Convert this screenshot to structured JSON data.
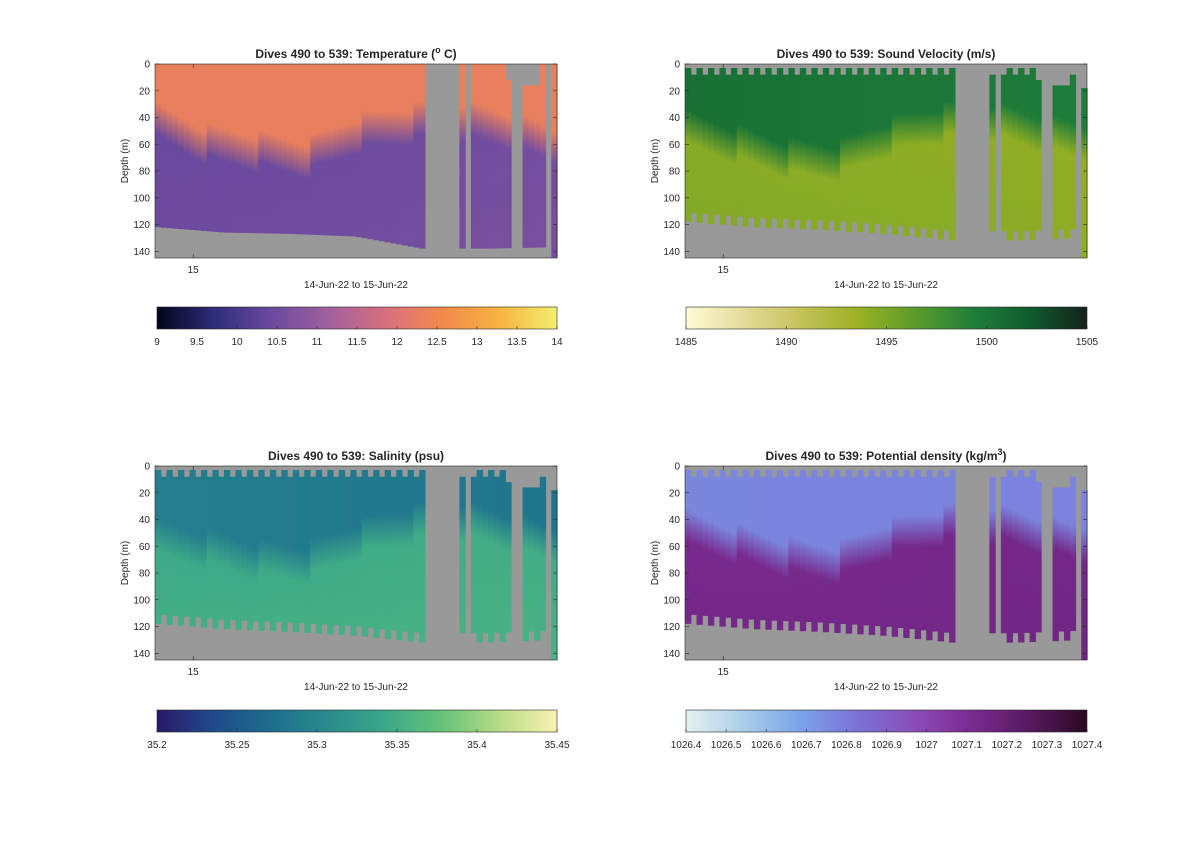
{
  "chart_data": [
    {
      "type": "heatmap",
      "title_text": "Dives 490 to 539: Temperature (",
      "title_sup": "o",
      "title_end": " C)",
      "ylabel": "Depth (m)",
      "xlabel": "14-Jun-22 to 15-Jun-22",
      "x_tick_labels": [
        "15"
      ],
      "y_tick_labels": [
        "0",
        "20",
        "40",
        "60",
        "80",
        "100",
        "120",
        "140"
      ],
      "ylim": [
        0,
        145
      ],
      "colormap": [
        "#03051a",
        "#2e2d7a",
        "#6b4a9f",
        "#a0609c",
        "#d7707e",
        "#f38a4a",
        "#f7b440",
        "#f2ef6e"
      ],
      "colorbar_ticks": [
        "9",
        "9.5",
        "10",
        "10.5",
        "11",
        "11.5",
        "12",
        "12.5",
        "13",
        "13.5",
        "14"
      ],
      "colorbar_range": [
        9,
        14
      ],
      "surface_value": 12.3,
      "deep_value": 10.45,
      "surface_values": [
        12.3,
        12.3
      ],
      "deep_values": [
        10.4,
        10.55
      ],
      "transition_depths_m": [
        45,
        60,
        65,
        70,
        52,
        45,
        40,
        48,
        60
      ],
      "bottom_depth_m": [
        122,
        126,
        127,
        129,
        138,
        138,
        137
      ],
      "data_gaps": [
        "dives 519-522",
        "dives 529-531",
        "dives 537-538"
      ],
      "no_data_color": "#999999"
    },
    {
      "type": "heatmap",
      "title_text": "Dives 490 to 539: Sound Velocity (m/s)",
      "ylabel": "Depth (m)",
      "xlabel": "14-Jun-22 to 15-Jun-22",
      "x_tick_labels": [
        "15"
      ],
      "y_tick_labels": [
        "0",
        "20",
        "40",
        "60",
        "80",
        "100",
        "120",
        "140"
      ],
      "ylim": [
        0,
        145
      ],
      "colormap": [
        "#fefbd6",
        "#e3dc9a",
        "#c5c25a",
        "#9bb224",
        "#5c9b2a",
        "#1f7f3a",
        "#0f5c2e",
        "#14221a"
      ],
      "colorbar_ticks": [
        "1485",
        "1490",
        "1495",
        "1500",
        "1505"
      ],
      "colorbar_range": [
        1485,
        1505
      ],
      "surface_values": [
        1500.5,
        1499.5
      ],
      "deep_values": [
        1494.5,
        1494.0
      ],
      "transition_depths_m": [
        50,
        60,
        70,
        72,
        55,
        45,
        40,
        50,
        58
      ],
      "bottom_depth_m": [
        118,
        122,
        124,
        127,
        132,
        132,
        130
      ],
      "data_gaps": [
        "dives 519-522",
        "dives 529-531",
        "dives 537-538"
      ],
      "no_data_color": "#999999"
    },
    {
      "type": "heatmap",
      "title_text": "Dives 490 to 539: Salinity (psu)",
      "ylabel": "Depth (m)",
      "xlabel": "14-Jun-22 to 15-Jun-22",
      "x_tick_labels": [
        "15"
      ],
      "y_tick_labels": [
        "0",
        "20",
        "40",
        "60",
        "80",
        "100",
        "120",
        "140"
      ],
      "ylim": [
        0,
        145
      ],
      "colormap": [
        "#2a1a68",
        "#1f4a8c",
        "#1d6e8e",
        "#2a8c8c",
        "#3aa889",
        "#66c37a",
        "#b8dc86",
        "#fbf2b3"
      ],
      "colorbar_ticks": [
        "35.2",
        "35.25",
        "35.3",
        "35.35",
        "35.4",
        "35.45"
      ],
      "colorbar_range": [
        35.2,
        35.45
      ],
      "surface_values": [
        35.29,
        35.28
      ],
      "deep_values": [
        35.345,
        35.35
      ],
      "transition_depths_m": [
        55,
        62,
        70,
        72,
        55,
        45,
        38,
        48,
        58
      ],
      "bottom_depth_m": [
        118,
        122,
        124,
        127,
        132,
        132,
        130
      ],
      "data_gaps": [
        "dives 519-522",
        "dives 529-531",
        "dives 537-538"
      ],
      "no_data_color": "#999999"
    },
    {
      "type": "heatmap",
      "title_text": "Dives 490 to 539: Potential density (kg/m",
      "title_sup": "3",
      "title_end": ")",
      "ylabel": "Depth (m)",
      "xlabel": "14-Jun-22 to 15-Jun-22",
      "x_tick_labels": [
        "15"
      ],
      "y_tick_labels": [
        "0",
        "20",
        "40",
        "60",
        "80",
        "100",
        "120",
        "140"
      ],
      "ylim": [
        0,
        145
      ],
      "colormap": [
        "#e6f1f1",
        "#a9cfe8",
        "#7aa3e8",
        "#7b72d6",
        "#8b4cb8",
        "#7a2a90",
        "#56195e",
        "#2a0a22"
      ],
      "colorbar_ticks": [
        "1026.4",
        "1026.5",
        "1026.6",
        "1026.7",
        "1026.8",
        "1026.9",
        "1027",
        "1027.1",
        "1027.2",
        "1027.3",
        "1027.4"
      ],
      "colorbar_range": [
        1026.4,
        1027.4
      ],
      "surface_values": [
        1026.77,
        1026.78
      ],
      "deep_values": [
        1027.12,
        1027.14
      ],
      "transition_depths_m": [
        48,
        58,
        68,
        72,
        55,
        45,
        40,
        50,
        58
      ],
      "bottom_depth_m": [
        118,
        122,
        124,
        127,
        132,
        132,
        130
      ],
      "data_gaps": [
        "dives 519-522",
        "dives 529-531",
        "dives 537-538"
      ],
      "no_data_color": "#999999"
    }
  ]
}
